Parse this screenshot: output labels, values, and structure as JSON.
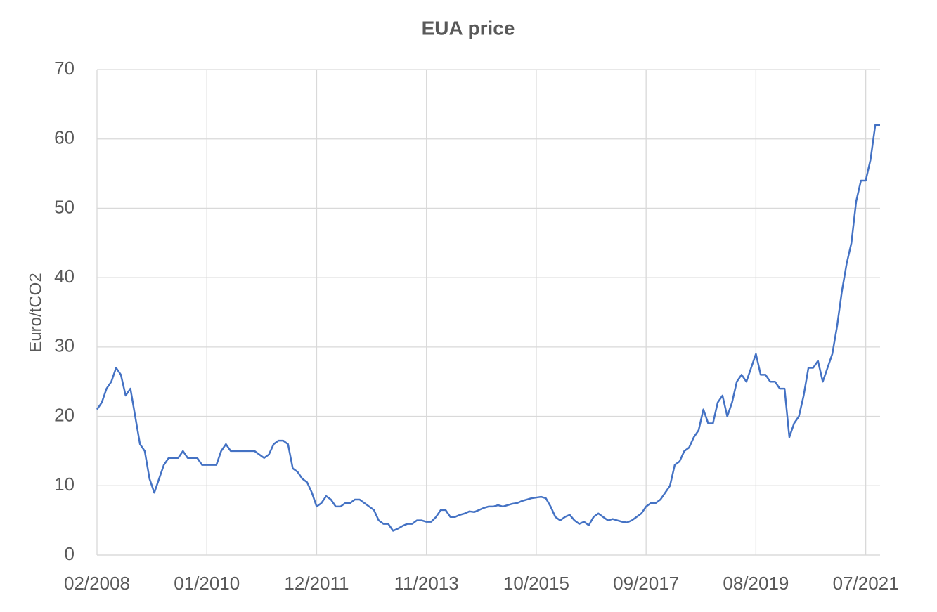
{
  "chart_data": {
    "type": "line",
    "title": "EUA price",
    "y_label": "Euro/tCO2",
    "x": [
      "02/2008",
      "03/2008",
      "04/2008",
      "05/2008",
      "06/2008",
      "07/2008",
      "08/2008",
      "09/2008",
      "10/2008",
      "11/2008",
      "12/2008",
      "01/2009",
      "02/2009",
      "03/2009",
      "04/2009",
      "05/2009",
      "06/2009",
      "07/2009",
      "08/2009",
      "09/2009",
      "10/2009",
      "11/2009",
      "12/2009",
      "01/2010",
      "02/2010",
      "03/2010",
      "04/2010",
      "05/2010",
      "06/2010",
      "07/2010",
      "08/2010",
      "09/2010",
      "10/2010",
      "11/2010",
      "12/2010",
      "01/2011",
      "02/2011",
      "03/2011",
      "04/2011",
      "05/2011",
      "06/2011",
      "07/2011",
      "08/2011",
      "09/2011",
      "10/2011",
      "11/2011",
      "12/2011",
      "01/2012",
      "02/2012",
      "03/2012",
      "04/2012",
      "05/2012",
      "06/2012",
      "07/2012",
      "08/2012",
      "09/2012",
      "10/2012",
      "11/2012",
      "12/2012",
      "01/2013",
      "02/2013",
      "03/2013",
      "04/2013",
      "05/2013",
      "06/2013",
      "07/2013",
      "08/2013",
      "09/2013",
      "10/2013",
      "11/2013",
      "12/2013",
      "01/2014",
      "02/2014",
      "03/2014",
      "04/2014",
      "05/2014",
      "06/2014",
      "07/2014",
      "08/2014",
      "09/2014",
      "10/2014",
      "11/2014",
      "12/2014",
      "01/2015",
      "02/2015",
      "03/2015",
      "04/2015",
      "05/2015",
      "06/2015",
      "07/2015",
      "08/2015",
      "09/2015",
      "10/2015",
      "11/2015",
      "12/2015",
      "01/2016",
      "02/2016",
      "03/2016",
      "04/2016",
      "05/2016",
      "06/2016",
      "07/2016",
      "08/2016",
      "09/2016",
      "10/2016",
      "11/2016",
      "12/2016",
      "01/2017",
      "02/2017",
      "03/2017",
      "04/2017",
      "05/2017",
      "06/2017",
      "07/2017",
      "08/2017",
      "09/2017",
      "10/2017",
      "11/2017",
      "12/2017",
      "01/2018",
      "02/2018",
      "03/2018",
      "04/2018",
      "05/2018",
      "06/2018",
      "07/2018",
      "08/2018",
      "09/2018",
      "10/2018",
      "11/2018",
      "12/2018",
      "01/2019",
      "02/2019",
      "03/2019",
      "04/2019",
      "05/2019",
      "06/2019",
      "07/2019",
      "08/2019",
      "09/2019",
      "10/2019",
      "11/2019",
      "12/2019",
      "01/2020",
      "02/2020",
      "03/2020",
      "04/2020",
      "05/2020",
      "06/2020",
      "07/2020",
      "08/2020",
      "09/2020",
      "10/2020",
      "11/2020",
      "12/2020",
      "01/2021",
      "02/2021",
      "03/2021",
      "04/2021",
      "05/2021",
      "06/2021",
      "07/2021",
      "08/2021",
      "09/2021",
      "10/2021"
    ],
    "series": [
      {
        "name": "EUA price",
        "color": "#4472c4",
        "values": [
          21,
          22,
          24,
          25,
          27,
          26,
          23,
          24,
          20,
          16,
          15,
          11,
          9,
          11,
          13,
          14,
          14,
          14,
          15,
          14,
          14,
          14,
          13,
          13,
          13,
          13,
          15,
          16,
          15,
          15,
          15,
          15,
          15,
          15,
          14.5,
          14,
          14.5,
          16,
          16.5,
          16.5,
          16,
          12.5,
          12,
          11,
          10.5,
          9,
          7,
          7.5,
          8.5,
          8,
          7,
          7,
          7.5,
          7.5,
          8,
          8,
          7.5,
          7,
          6.5,
          5,
          4.5,
          4.5,
          3.5,
          3.8,
          4.2,
          4.5,
          4.5,
          5,
          5,
          4.8,
          4.8,
          5.5,
          6.5,
          6.5,
          5.5,
          5.5,
          5.8,
          6,
          6.3,
          6.2,
          6.5,
          6.8,
          7,
          7,
          7.2,
          7,
          7.2,
          7.4,
          7.5,
          7.8,
          8,
          8.2,
          8.3,
          8.4,
          8.2,
          7,
          5.5,
          5,
          5.5,
          5.8,
          5,
          4.5,
          4.8,
          4.3,
          5.5,
          6,
          5.5,
          5,
          5.2,
          5,
          4.8,
          4.7,
          5,
          5.5,
          6,
          7,
          7.5,
          7.5,
          8,
          9,
          10,
          13,
          13.5,
          15,
          15.5,
          17,
          18,
          21,
          19,
          19,
          22,
          23,
          20,
          22,
          25,
          26,
          25,
          27,
          29,
          26,
          26,
          25,
          25,
          24,
          24,
          17,
          19,
          20,
          23,
          27,
          27,
          28,
          25,
          27,
          29,
          33,
          38,
          42,
          45,
          51,
          54,
          54,
          57,
          62,
          62
        ]
      }
    ],
    "xticks": [
      "02/2008",
      "01/2010",
      "12/2011",
      "11/2013",
      "10/2015",
      "09/2017",
      "08/2019",
      "07/2021"
    ],
    "ylim": [
      0,
      70
    ],
    "yticks": [
      0,
      10,
      20,
      30,
      40,
      50,
      60,
      70
    ],
    "grid": true
  }
}
